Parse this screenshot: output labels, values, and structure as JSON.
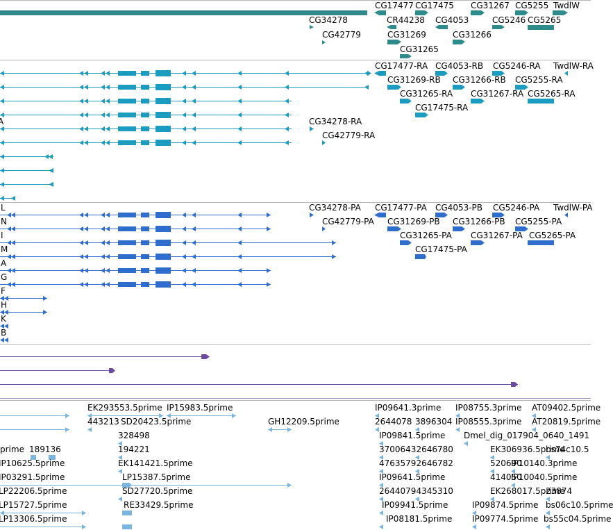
{
  "colors": {
    "gene": "#2e8b8b",
    "flybase_tx": "#1a9bbf",
    "refseq_tx": "#2f6dcc",
    "purple": "#6b4aa0",
    "est": "#7ab5df",
    "separator": "#b8b8b8"
  },
  "genes": {
    "labels": [
      "CG17477",
      "CG17475",
      "CG31267",
      "CG5255",
      "TwdlW",
      "CG34278",
      "CR44238",
      "CG4053",
      "CG5246",
      "CG5265",
      "CG42779",
      "CG31269",
      "CG31266",
      "CG31265"
    ]
  },
  "flybase": {
    "labels": [
      "CG17477-RA",
      "CG4053-RB",
      "CG5246-RA",
      "TwdlW-RA",
      "CG31269-RB",
      "CG31266-RB",
      "CG5255-RA",
      "CG31265-RA",
      "CG31267-RA",
      "CG5265-RA",
      "CG17475-RA",
      "CG34278-RA",
      "CG42779-RA"
    ],
    "edge_letters": [
      "A"
    ]
  },
  "refseq": {
    "labels": [
      "CG34278-PA",
      "CG17477-PA",
      "CG4053-PB",
      "CG5246-PA",
      "TwdlW-PA",
      "CG42779-PA",
      "CG31269-PB",
      "CG31266-PB",
      "CG5255-PA",
      "CG31265-PA",
      "CG31267-PA",
      "CG5265-PA",
      "CG17475-PA"
    ],
    "edge_letters": [
      "L",
      "N",
      "I",
      "M",
      "A",
      "G",
      "F",
      "H",
      "K",
      "B"
    ]
  },
  "est": {
    "labels": [
      "EK293553.5prime",
      "IP15983.5prime",
      "IP09641.3prime",
      "IP08755.3prime",
      "AT09402.5prime",
      "443213",
      "SD20423.5prime",
      "GH12209.5prime",
      "2644078",
      "3896304",
      "IP08555.3prime",
      "AT20819.5prime",
      "328498",
      "IP09841.5prime",
      "Dmel_dig_017904_0640_1491",
      "prime",
      "189136",
      "194221",
      "37006432646780",
      "EK306936.5prime",
      "bs74c10.5",
      "IP10625.5prime",
      "EK141421.5prime",
      "47635792646782",
      "520690",
      "IP10140.3prime",
      "IP03291.5prime",
      "LP15387.5prime",
      "IP09641.5prime",
      "414050",
      "IP10040.5prime",
      "LP22206.5prime",
      "SD27720.5prime",
      "26440794345310",
      "EK268017.5prime",
      "23874",
      "LP15727.5prime",
      "RE33429.5prime",
      "IP09941.5prime",
      "IP09874.5prime",
      "bs06c10.5prime",
      "LP13306.5prime",
      "IP08181.5prime",
      "IP09774.5prime",
      "bs55c04.5prime"
    ]
  }
}
